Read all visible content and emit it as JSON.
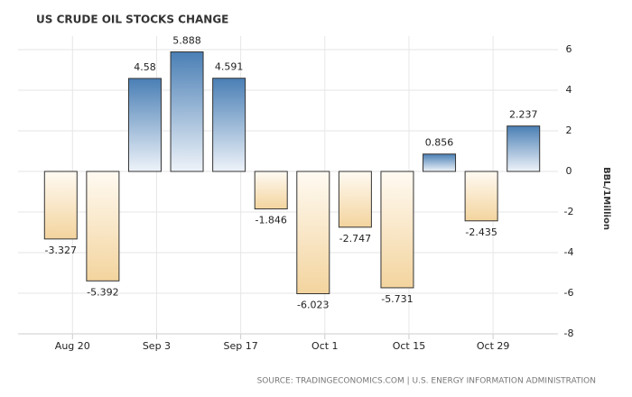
{
  "chart_data": {
    "type": "bar",
    "title": "US CRUDE OIL STOCKS CHANGE",
    "y_label": "BBL/1Million",
    "source": "SOURCE: TRADINGECONOMICS.COM | U.S. ENERGY INFORMATION ADMINISTRATION",
    "categories": [
      "Aug 20",
      null,
      "Sep 3",
      null,
      "Sep 17",
      null,
      "Oct 1",
      null,
      "Oct 15",
      null,
      "Oct 29",
      null
    ],
    "values": [
      -3.327,
      -5.392,
      4.58,
      5.888,
      4.591,
      -1.846,
      -6.023,
      -2.747,
      -5.731,
      0.856,
      -2.435,
      2.237
    ],
    "ylim": [
      -8,
      6
    ],
    "yticks": [
      -8,
      -6,
      -4,
      -2,
      0,
      2,
      4,
      6
    ],
    "grid": true,
    "positive_color": "#4a7fb5",
    "negative_color": "#f3d49e"
  }
}
